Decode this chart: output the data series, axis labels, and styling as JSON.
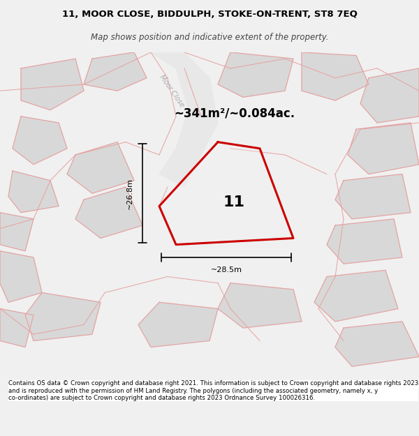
{
  "title_line1": "11, MOOR CLOSE, BIDDULPH, STOKE-ON-TRENT, ST8 7EQ",
  "title_line2": "Map shows position and indicative extent of the property.",
  "area_text": "~341m²/~0.084ac.",
  "property_number": "11",
  "dim_vertical": "~26.8m",
  "dim_horizontal": "~28.5m",
  "road_label": "Moor Close",
  "footer_text": "Contains OS data © Crown copyright and database right 2021. This information is subject to Crown copyright and database rights 2023 and is reproduced with the permission of HM Land Registry. The polygons (including the associated geometry, namely x, y co-ordinates) are subject to Crown copyright and database rights 2023 Ordnance Survey 100026316.",
  "bg_color": "#f0f0f0",
  "map_bg": "#f0f0f0",
  "building_color": "#d8d8d8",
  "building_edge": "#e8a0a0",
  "property_fill": "#f0f0f0",
  "property_edge": "#cc0000",
  "road_color": "#ffffff",
  "footer_bg": "#f8f8f8"
}
